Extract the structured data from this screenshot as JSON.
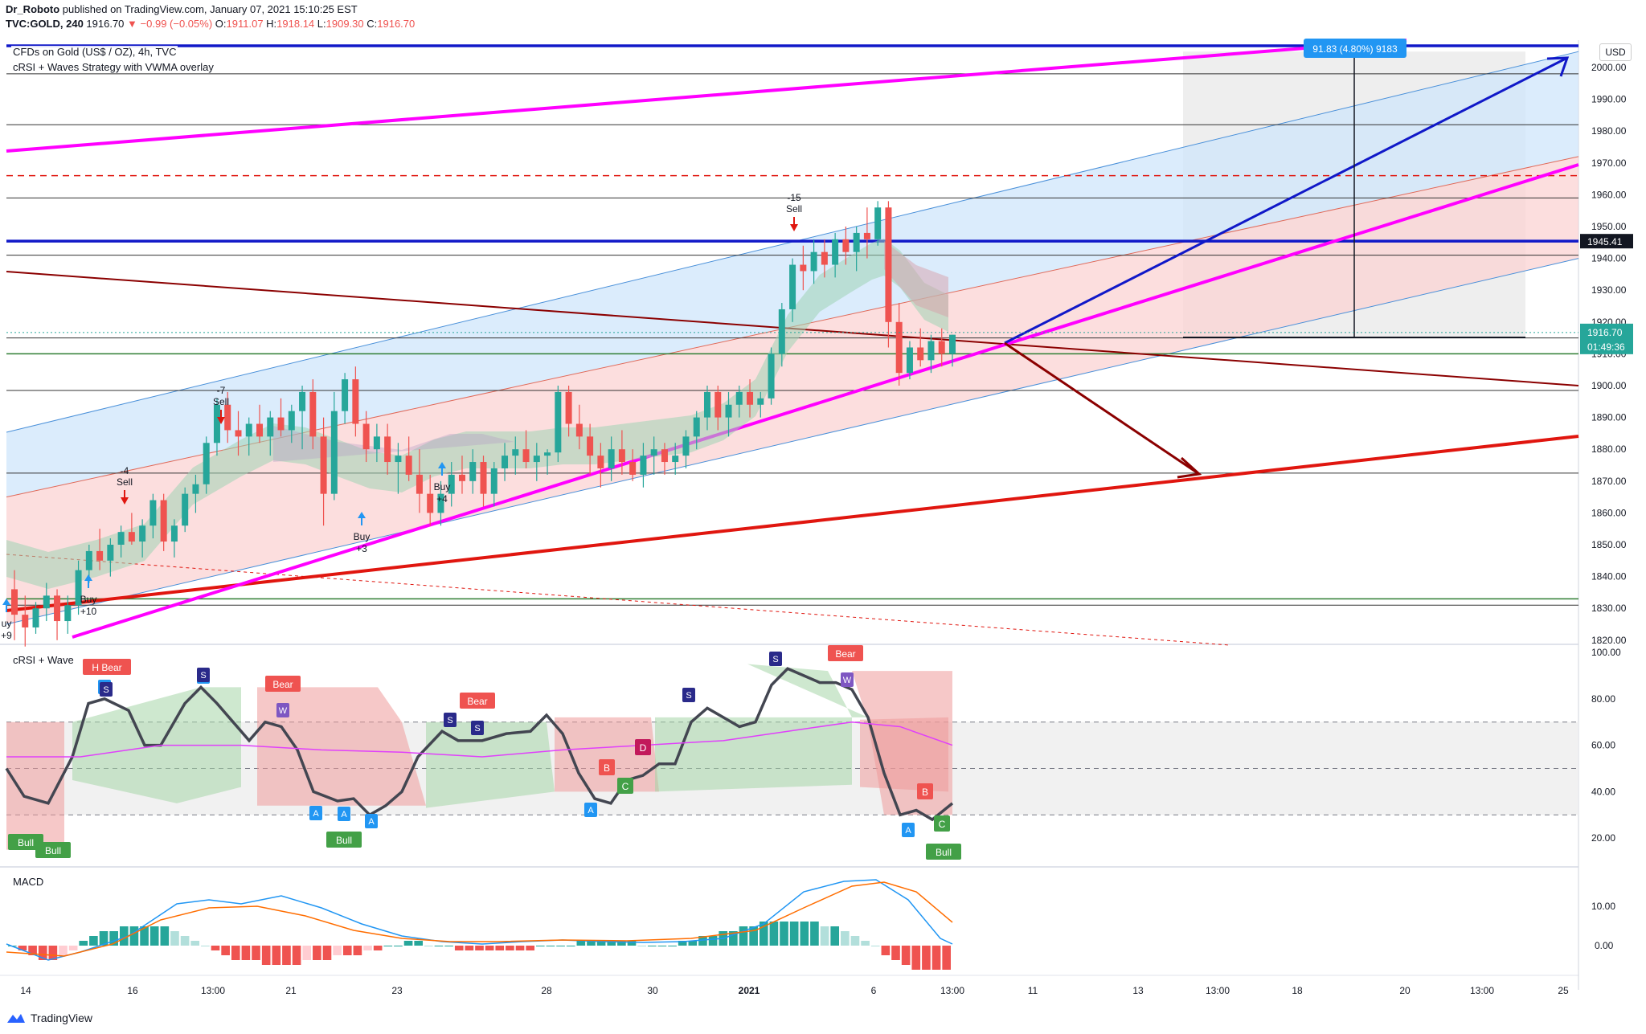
{
  "header": {
    "author": "Dr_Roboto",
    "published": "published on TradingView.com, January 07, 2021 15:10:25 EST",
    "symbol": "TVC:GOLD, 240",
    "price": "1916.70",
    "change": "▼ −0.99 (−0.05%)",
    "open_label": "O:",
    "open": "1911.07",
    "high_label": "H:",
    "high": "1918.14",
    "low_label": "L:",
    "low": "1909.30",
    "close_label": "C:",
    "close": "1916.70"
  },
  "main_panel": {
    "title": "CFDs on Gold (US$ / OZ), 4h, TVC",
    "indicator": "cRSI + Waves Strategy with VWMA overlay",
    "currency": "USD"
  },
  "crsi_panel": {
    "title": "cRSI + Wave"
  },
  "macd_panel": {
    "title": "MACD"
  },
  "footer": {
    "brand": "TradingView"
  },
  "colors": {
    "bull": "#26a69a",
    "bear": "#ef5350",
    "magenta": "#ff00ff",
    "navy": "#1018c8",
    "maroon": "#8b0000",
    "red": "#e0160f",
    "channel_blue": "#cfe6fb",
    "channel_pink": "#fbd3d3"
  },
  "chart_data": {
    "type": "candlestick",
    "price_axis": {
      "ticks": [
        "2000.00",
        "1990.00",
        "1980.00",
        "1970.00",
        "1960.00",
        "1950.00",
        "1940.00",
        "1930.00",
        "1920.00",
        "1910.00",
        "1900.00",
        "1890.00",
        "1880.00",
        "1870.00",
        "1860.00",
        "1850.00",
        "1840.00",
        "1830.00",
        "1820.00"
      ],
      "current_price": "1916.70",
      "countdown": "01:49:36",
      "level_label": "1945.41"
    },
    "time_axis": [
      "14",
      "16",
      "13:00",
      "21",
      "23",
      "28",
      "30",
      "2021",
      "6",
      "13:00",
      "11",
      "13",
      "13:00",
      "18",
      "20",
      "13:00",
      "25"
    ],
    "measure_label": "91.83 (4.80%) 9183",
    "signals": [
      {
        "text1": "Buy",
        "text2": "+10"
      },
      {
        "text1": "-4",
        "text2": "Sell"
      },
      {
        "text1": "-7",
        "text2": "Sell"
      },
      {
        "text1": "Buy",
        "text2": "+3"
      },
      {
        "text1": "Buy",
        "text2": "+4"
      },
      {
        "text1": "-15",
        "text2": "Sell"
      },
      {
        "text1": "uy",
        "text2": "+9"
      }
    ],
    "crsi_axis": [
      "100.00",
      "80.00",
      "60.00",
      "40.00",
      "20.00"
    ],
    "macd_axis": [
      "10.00",
      "0.00"
    ],
    "crsi_markers": [
      {
        "text": "H Bear",
        "kind": "bear"
      },
      {
        "text": "Bear",
        "kind": "bear"
      },
      {
        "text": "Bear",
        "kind": "bear"
      },
      {
        "text": "Bear",
        "kind": "bear"
      },
      {
        "text": "B",
        "kind": "bear"
      },
      {
        "text": "B",
        "kind": "bear"
      },
      {
        "text": "D",
        "kind": "dark"
      },
      {
        "text": "Bull",
        "kind": "bull"
      },
      {
        "text": "Bull",
        "kind": "bull"
      },
      {
        "text": "Bull",
        "kind": "bull"
      },
      {
        "text": "Bull",
        "kind": "bull"
      },
      {
        "text": "C",
        "kind": "bull"
      },
      {
        "text": "C",
        "kind": "bull"
      },
      {
        "text": "A",
        "kind": "blue"
      },
      {
        "text": "S",
        "kind": "navy"
      },
      {
        "text": "W",
        "kind": "purple"
      }
    ],
    "candles": [
      [
        1836,
        1842,
        1820,
        1828
      ],
      [
        1828,
        1834,
        1818,
        1824
      ],
      [
        1824,
        1832,
        1822,
        1830
      ],
      [
        1830,
        1838,
        1826,
        1834
      ],
      [
        1834,
        1836,
        1820,
        1826
      ],
      [
        1826,
        1834,
        1822,
        1831
      ],
      [
        1831,
        1845,
        1828,
        1842
      ],
      [
        1842,
        1850,
        1838,
        1848
      ],
      [
        1848,
        1855,
        1842,
        1845
      ],
      [
        1845,
        1852,
        1840,
        1850
      ],
      [
        1850,
        1856,
        1846,
        1854
      ],
      [
        1854,
        1860,
        1850,
        1851
      ],
      [
        1851,
        1858,
        1846,
        1856
      ],
      [
        1856,
        1866,
        1852,
        1864
      ],
      [
        1864,
        1866,
        1848,
        1851
      ],
      [
        1851,
        1858,
        1846,
        1856
      ],
      [
        1856,
        1868,
        1854,
        1866
      ],
      [
        1866,
        1872,
        1860,
        1869
      ],
      [
        1869,
        1884,
        1866,
        1882
      ],
      [
        1882,
        1896,
        1878,
        1894
      ],
      [
        1894,
        1898,
        1882,
        1886
      ],
      [
        1886,
        1892,
        1878,
        1884
      ],
      [
        1884,
        1890,
        1878,
        1888
      ],
      [
        1888,
        1894,
        1882,
        1884
      ],
      [
        1884,
        1892,
        1878,
        1890
      ],
      [
        1890,
        1896,
        1884,
        1886
      ],
      [
        1886,
        1894,
        1882,
        1892
      ],
      [
        1892,
        1900,
        1880,
        1898
      ],
      [
        1898,
        1902,
        1880,
        1884
      ],
      [
        1884,
        1890,
        1856,
        1866
      ],
      [
        1866,
        1898,
        1864,
        1892
      ],
      [
        1892,
        1904,
        1888,
        1902
      ],
      [
        1902,
        1906,
        1884,
        1888
      ],
      [
        1888,
        1892,
        1876,
        1880
      ],
      [
        1880,
        1888,
        1876,
        1884
      ],
      [
        1884,
        1888,
        1872,
        1876
      ],
      [
        1876,
        1882,
        1866,
        1878
      ],
      [
        1878,
        1884,
        1870,
        1872
      ],
      [
        1872,
        1880,
        1860,
        1866
      ],
      [
        1866,
        1872,
        1856,
        1860
      ],
      [
        1860,
        1870,
        1856,
        1866
      ],
      [
        1866,
        1876,
        1862,
        1872
      ],
      [
        1872,
        1878,
        1866,
        1870
      ],
      [
        1870,
        1880,
        1866,
        1876
      ],
      [
        1876,
        1878,
        1862,
        1866
      ],
      [
        1866,
        1876,
        1862,
        1874
      ],
      [
        1874,
        1882,
        1870,
        1878
      ],
      [
        1878,
        1884,
        1872,
        1880
      ],
      [
        1880,
        1886,
        1874,
        1876
      ],
      [
        1876,
        1882,
        1870,
        1878
      ],
      [
        1878,
        1880,
        1872,
        1879
      ],
      [
        1879,
        1900,
        1876,
        1898
      ],
      [
        1898,
        1900,
        1884,
        1888
      ],
      [
        1888,
        1894,
        1880,
        1884
      ],
      [
        1884,
        1888,
        1872,
        1878
      ],
      [
        1878,
        1882,
        1868,
        1874
      ],
      [
        1874,
        1884,
        1870,
        1880
      ],
      [
        1880,
        1886,
        1872,
        1876
      ],
      [
        1876,
        1880,
        1870,
        1872
      ],
      [
        1872,
        1882,
        1868,
        1878
      ],
      [
        1878,
        1884,
        1872,
        1880
      ],
      [
        1880,
        1882,
        1872,
        1876
      ],
      [
        1876,
        1882,
        1872,
        1878
      ],
      [
        1878,
        1886,
        1874,
        1884
      ],
      [
        1884,
        1892,
        1880,
        1890
      ],
      [
        1890,
        1900,
        1886,
        1898
      ],
      [
        1898,
        1900,
        1886,
        1890
      ],
      [
        1890,
        1898,
        1884,
        1894
      ],
      [
        1894,
        1900,
        1890,
        1898
      ],
      [
        1898,
        1902,
        1890,
        1894
      ],
      [
        1894,
        1898,
        1890,
        1896
      ],
      [
        1896,
        1912,
        1894,
        1910
      ],
      [
        1910,
        1926,
        1906,
        1924
      ],
      [
        1924,
        1940,
        1920,
        1938
      ],
      [
        1938,
        1944,
        1930,
        1936
      ],
      [
        1936,
        1946,
        1932,
        1942
      ],
      [
        1942,
        1946,
        1934,
        1938
      ],
      [
        1938,
        1948,
        1934,
        1946
      ],
      [
        1946,
        1950,
        1938,
        1942
      ],
      [
        1942,
        1950,
        1936,
        1948
      ],
      [
        1948,
        1956,
        1940,
        1946
      ],
      [
        1946,
        1958,
        1944,
        1956
      ],
      [
        1956,
        1958,
        1912,
        1920
      ],
      [
        1920,
        1926,
        1900,
        1904
      ],
      [
        1904,
        1914,
        1902,
        1912
      ],
      [
        1912,
        1918,
        1906,
        1908
      ],
      [
        1908,
        1916,
        1904,
        1914
      ],
      [
        1914,
        1918,
        1906,
        1910
      ],
      [
        1910,
        1916,
        1906,
        1916
      ]
    ]
  }
}
